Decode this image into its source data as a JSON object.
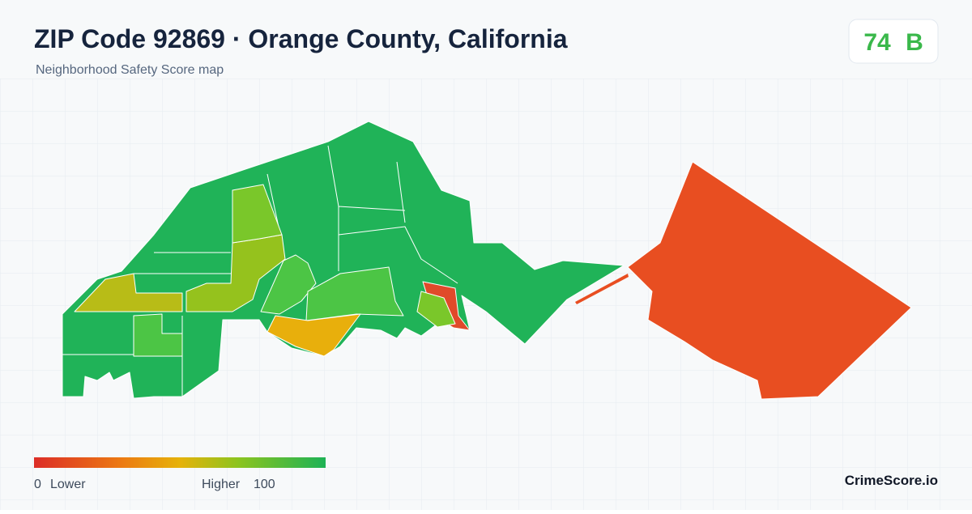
{
  "header": {
    "title": "ZIP Code 92869 · Orange County, California",
    "subtitle": "Neighborhood Safety Score map"
  },
  "score": {
    "value": 74,
    "grade": "B"
  },
  "legend": {
    "min": 0,
    "min_label": "Lower",
    "max_label": "Higher",
    "max": 100
  },
  "brand": "CrimeScore.io"
}
